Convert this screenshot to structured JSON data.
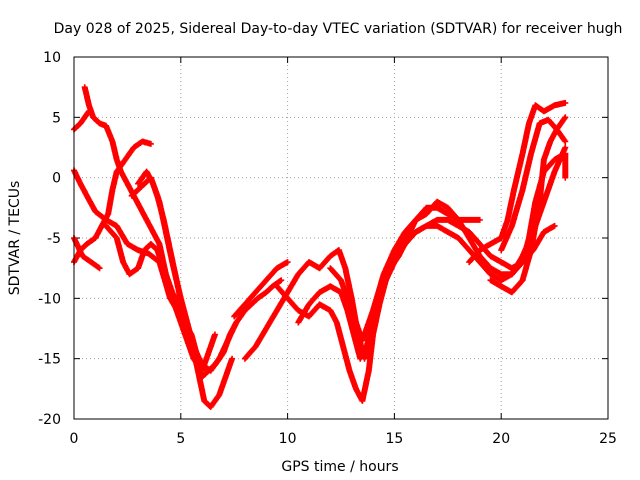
{
  "chart_data": {
    "type": "scatter",
    "title": "Day 028 of 2025, Sidereal Day-to-day VTEC variation (SDTVAR) for receiver hugh",
    "xlabel": "GPS time / hours",
    "ylabel": "SDTVAR / TECUs",
    "xlim": [
      0,
      25
    ],
    "ylim": [
      -20,
      10
    ],
    "xticks": [
      "0",
      "5",
      "10",
      "15",
      "20",
      "25"
    ],
    "yticks": [
      "10",
      "5",
      "0",
      "-5",
      "-10",
      "-15",
      "-20"
    ],
    "grid": true,
    "marker": "+",
    "color": "#ff0000",
    "tracks": [
      [
        [
          0.0,
          4.0
        ],
        [
          0.3,
          4.5
        ],
        [
          0.5,
          5.0
        ],
        [
          0.7,
          5.5
        ]
      ],
      [
        [
          0.0,
          0.6
        ],
        [
          0.3,
          -0.5
        ],
        [
          0.6,
          -1.5
        ],
        [
          1.0,
          -2.8
        ],
        [
          1.5,
          -3.5
        ],
        [
          2.0,
          -4.0
        ],
        [
          2.5,
          -5.5
        ],
        [
          3.0,
          -6.0
        ],
        [
          3.5,
          -6.3
        ],
        [
          4.0,
          -7.0
        ],
        [
          4.5,
          -10.0
        ],
        [
          5.0,
          -11.5
        ],
        [
          5.5,
          -13.0
        ],
        [
          5.8,
          -15.0
        ]
      ],
      [
        [
          0.0,
          -7.0
        ],
        [
          0.3,
          -6.0
        ],
        [
          0.6,
          -5.5
        ],
        [
          1.0,
          -5.0
        ],
        [
          1.3,
          -4.0
        ],
        [
          1.6,
          -3.0
        ],
        [
          1.8,
          -1.0
        ],
        [
          2.0,
          0.5
        ],
        [
          2.4,
          1.5
        ],
        [
          2.8,
          2.5
        ],
        [
          3.2,
          3.0
        ],
        [
          3.6,
          2.8
        ]
      ],
      [
        [
          0.0,
          -5.0
        ],
        [
          0.4,
          -6.5
        ],
        [
          0.8,
          -7.0
        ],
        [
          1.2,
          -7.5
        ]
      ],
      [
        [
          0.5,
          7.5
        ],
        [
          0.7,
          6.0
        ],
        [
          0.9,
          5.0
        ],
        [
          1.2,
          4.5
        ],
        [
          1.5,
          4.3
        ],
        [
          1.8,
          3.0
        ],
        [
          2.0,
          1.5
        ],
        [
          2.2,
          0.5
        ],
        [
          2.5,
          -0.5
        ],
        [
          2.8,
          -1.5
        ],
        [
          3.1,
          -2.5
        ],
        [
          3.4,
          -3.5
        ],
        [
          3.7,
          -4.5
        ],
        [
          4.0,
          -5.5
        ],
        [
          4.3,
          -8.0
        ],
        [
          4.6,
          -10.0
        ],
        [
          5.0,
          -12.0
        ],
        [
          5.3,
          -13.5
        ],
        [
          5.6,
          -15.0
        ],
        [
          6.0,
          -16.0
        ],
        [
          6.3,
          -14.5
        ],
        [
          6.6,
          -13.0
        ]
      ],
      [
        [
          1.5,
          -4.0
        ],
        [
          2.0,
          -5.0
        ],
        [
          2.3,
          -7.0
        ],
        [
          2.6,
          -8.0
        ],
        [
          3.0,
          -7.5
        ],
        [
          3.3,
          -6.0
        ],
        [
          3.6,
          -5.5
        ],
        [
          3.9,
          -6.0
        ],
        [
          4.2,
          -7.5
        ],
        [
          4.6,
          -9.5
        ],
        [
          5.0,
          -11.0
        ],
        [
          5.3,
          -13.0
        ],
        [
          5.6,
          -14.5
        ],
        [
          6.0,
          -16.5
        ],
        [
          6.3,
          -16.0
        ],
        [
          6.6,
          -15.5
        ],
        [
          7.0,
          -14.5
        ],
        [
          7.3,
          -13.0
        ],
        [
          7.6,
          -12.0
        ]
      ],
      [
        [
          2.7,
          -1.5
        ],
        [
          3.0,
          -1.0
        ],
        [
          3.3,
          -0.5
        ],
        [
          3.6,
          0.0
        ],
        [
          3.9,
          -1.5
        ],
        [
          4.2,
          -3.5
        ],
        [
          4.5,
          -6.0
        ],
        [
          4.8,
          -8.5
        ],
        [
          5.1,
          -11.0
        ],
        [
          5.5,
          -13.5
        ],
        [
          5.8,
          -16.0
        ],
        [
          6.1,
          -18.5
        ],
        [
          6.4,
          -19.0
        ],
        [
          6.8,
          -18.0
        ],
        [
          7.1,
          -16.5
        ],
        [
          7.4,
          -15.0
        ]
      ],
      [
        [
          3.0,
          -0.5
        ],
        [
          3.4,
          0.5
        ],
        [
          3.7,
          -0.5
        ],
        [
          4.0,
          -2.0
        ],
        [
          4.3,
          -4.5
        ],
        [
          4.6,
          -7.0
        ],
        [
          5.0,
          -10.0
        ],
        [
          5.3,
          -12.0
        ],
        [
          5.6,
          -14.0
        ],
        [
          6.0,
          -15.5
        ],
        [
          6.4,
          -16.0
        ],
        [
          6.8,
          -15.0
        ],
        [
          7.2,
          -13.5
        ],
        [
          7.6,
          -12.0
        ],
        [
          8.0,
          -11.0
        ],
        [
          8.3,
          -10.5
        ],
        [
          8.6,
          -10.0
        ],
        [
          9.0,
          -9.5
        ],
        [
          9.3,
          -9.0
        ],
        [
          9.7,
          -8.5
        ]
      ],
      [
        [
          7.5,
          -11.5
        ],
        [
          8.0,
          -10.5
        ],
        [
          8.5,
          -9.5
        ],
        [
          9.0,
          -8.5
        ],
        [
          9.5,
          -7.5
        ],
        [
          10.0,
          -7.0
        ]
      ],
      [
        [
          8.0,
          -15.0
        ],
        [
          8.5,
          -14.0
        ],
        [
          9.0,
          -12.5
        ],
        [
          9.5,
          -11.0
        ],
        [
          10.0,
          -9.5
        ],
        [
          10.5,
          -8.0
        ],
        [
          11.0,
          -7.0
        ],
        [
          11.5,
          -7.5
        ],
        [
          12.0,
          -6.5
        ],
        [
          12.4,
          -6.0
        ],
        [
          12.7,
          -7.5
        ],
        [
          13.0,
          -10.0
        ],
        [
          13.3,
          -13.0
        ],
        [
          13.6,
          -15.0
        ],
        [
          13.9,
          -13.0
        ],
        [
          14.2,
          -11.0
        ],
        [
          14.5,
          -9.0
        ],
        [
          14.8,
          -7.5
        ],
        [
          15.2,
          -6.5
        ],
        [
          15.6,
          -5.0
        ],
        [
          16.0,
          -3.5
        ],
        [
          16.5,
          -2.5
        ],
        [
          17.0,
          -2.5
        ],
        [
          17.5,
          -3.0
        ],
        [
          18.0,
          -3.5
        ],
        [
          18.5,
          -3.5
        ],
        [
          19.0,
          -3.5
        ]
      ],
      [
        [
          9.5,
          -9.0
        ],
        [
          10.0,
          -10.0
        ],
        [
          10.5,
          -11.0
        ],
        [
          11.0,
          -11.5
        ],
        [
          11.5,
          -10.5
        ],
        [
          12.0,
          -11.0
        ],
        [
          12.3,
          -12.0
        ],
        [
          12.6,
          -14.0
        ],
        [
          12.9,
          -16.0
        ],
        [
          13.2,
          -17.5
        ],
        [
          13.5,
          -18.5
        ],
        [
          13.8,
          -16.0
        ],
        [
          14.0,
          -13.0
        ],
        [
          14.3,
          -10.5
        ],
        [
          14.6,
          -8.5
        ],
        [
          15.0,
          -7.0
        ],
        [
          15.5,
          -5.5
        ],
        [
          16.0,
          -4.5
        ],
        [
          16.5,
          -4.0
        ],
        [
          17.0,
          -3.5
        ],
        [
          17.5,
          -3.5
        ],
        [
          18.0,
          -4.0
        ],
        [
          18.5,
          -4.5
        ],
        [
          19.0,
          -5.5
        ],
        [
          19.5,
          -6.5
        ],
        [
          20.0,
          -7.0
        ],
        [
          20.5,
          -7.5
        ],
        [
          21.0,
          -7.0
        ],
        [
          21.5,
          -6.0
        ],
        [
          22.0,
          -4.5
        ],
        [
          22.5,
          -4.0
        ]
      ],
      [
        [
          10.5,
          -12.0
        ],
        [
          11.0,
          -10.5
        ],
        [
          11.5,
          -9.5
        ],
        [
          12.0,
          -9.0
        ],
        [
          12.5,
          -9.5
        ],
        [
          12.8,
          -11.0
        ],
        [
          13.1,
          -13.0
        ],
        [
          13.4,
          -15.0
        ],
        [
          13.7,
          -14.0
        ],
        [
          14.0,
          -12.0
        ],
        [
          14.3,
          -10.0
        ],
        [
          14.6,
          -8.0
        ],
        [
          15.0,
          -6.5
        ],
        [
          15.5,
          -5.0
        ],
        [
          16.0,
          -4.5
        ],
        [
          16.5,
          -4.0
        ],
        [
          17.0,
          -4.0
        ],
        [
          17.5,
          -4.5
        ],
        [
          18.0,
          -5.0
        ],
        [
          18.5,
          -6.0
        ],
        [
          19.0,
          -7.0
        ],
        [
          19.5,
          -8.0
        ],
        [
          20.0,
          -8.5
        ],
        [
          20.5,
          -8.0
        ],
        [
          21.0,
          -6.5
        ],
        [
          21.5,
          -4.5
        ],
        [
          22.0,
          -2.0
        ],
        [
          22.5,
          0.5
        ],
        [
          23.0,
          2.5
        ]
      ],
      [
        [
          12.0,
          -7.5
        ],
        [
          12.5,
          -8.5
        ],
        [
          13.0,
          -11.0
        ],
        [
          13.5,
          -13.5
        ],
        [
          14.0,
          -11.0
        ],
        [
          14.5,
          -8.0
        ],
        [
          15.0,
          -6.0
        ],
        [
          15.5,
          -4.5
        ],
        [
          16.0,
          -3.5
        ],
        [
          16.5,
          -3.0
        ],
        [
          17.0,
          -2.0
        ],
        [
          17.5,
          -2.5
        ],
        [
          18.0,
          -3.5
        ],
        [
          18.5,
          -5.0
        ],
        [
          19.0,
          -6.5
        ],
        [
          19.5,
          -7.5
        ],
        [
          20.0,
          -8.0
        ],
        [
          20.5,
          -8.0
        ],
        [
          21.0,
          -7.0
        ],
        [
          21.3,
          -5.0
        ],
        [
          21.6,
          -2.0
        ],
        [
          22.0,
          0.5
        ],
        [
          22.5,
          1.5
        ],
        [
          23.0,
          2.0
        ],
        [
          23.0,
          0.0
        ]
      ],
      [
        [
          18.5,
          -7.0
        ],
        [
          19.0,
          -6.0
        ],
        [
          19.5,
          -5.5
        ],
        [
          20.0,
          -5.0
        ],
        [
          20.3,
          -3.5
        ],
        [
          20.6,
          -1.0
        ],
        [
          21.0,
          2.0
        ],
        [
          21.3,
          4.5
        ],
        [
          21.6,
          6.0
        ],
        [
          22.0,
          5.5
        ],
        [
          22.5,
          6.0
        ],
        [
          23.0,
          6.2
        ]
      ],
      [
        [
          19.5,
          -8.5
        ],
        [
          20.0,
          -9.0
        ],
        [
          20.5,
          -9.5
        ],
        [
          21.0,
          -8.5
        ],
        [
          21.4,
          -6.0
        ],
        [
          21.8,
          -2.0
        ],
        [
          22.0,
          1.5
        ],
        [
          22.3,
          3.0
        ],
        [
          22.6,
          4.0
        ],
        [
          23.0,
          5.0
        ]
      ],
      [
        [
          20.0,
          -6.0
        ],
        [
          20.5,
          -4.0
        ],
        [
          21.0,
          -1.0
        ],
        [
          21.4,
          2.0
        ],
        [
          21.8,
          4.5
        ],
        [
          22.2,
          4.8
        ],
        [
          22.6,
          4.0
        ],
        [
          23.0,
          3.0
        ]
      ]
    ]
  }
}
